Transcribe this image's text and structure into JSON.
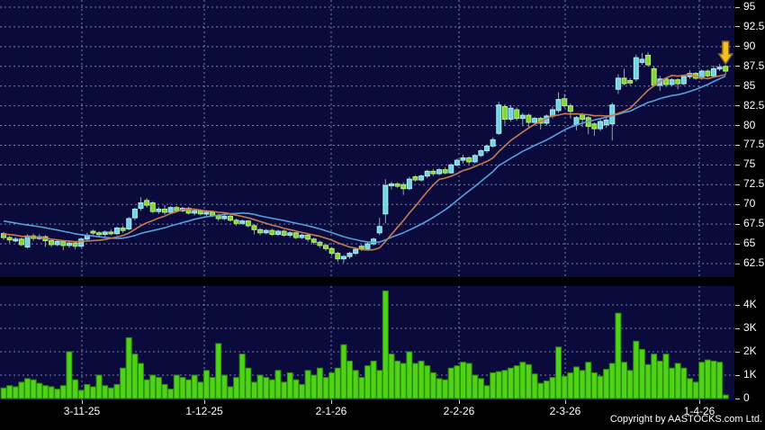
{
  "footer": {
    "copyright": "Copyright by AASTOCKS.com Ltd."
  },
  "colors": {
    "background": "#000000",
    "pane_background": "#0a0a3c",
    "grid": "#9096bc",
    "axis_text": "#ffffff",
    "up_body": "#6ed6e2",
    "up_border": "#b2f0f6",
    "down_body": "#7ed832",
    "down_border": "#bcf07c",
    "wick": "#98a2b6",
    "ma_fast": "#c87a50",
    "ma_slow": "#55a0dc",
    "volume_bar": "#4fd316",
    "volume_bar_border": "#2c8a0a",
    "arrow_fill": "#f2c028",
    "arrow_border": "#8a6a10"
  },
  "chart_data": {
    "type": "candlestick",
    "panes": [
      "price",
      "volume"
    ],
    "legend_position": "none",
    "grid": true,
    "price_axis": {
      "side": "right",
      "min": 62.5,
      "max": 95,
      "ticks": [
        {
          "value": 95,
          "label": "95"
        },
        {
          "value": 92.5,
          "label": "92.5"
        },
        {
          "value": 90,
          "label": "90"
        },
        {
          "value": 87.5,
          "label": "87.5"
        },
        {
          "value": 85,
          "label": "85"
        },
        {
          "value": 82.5,
          "label": "82.5"
        },
        {
          "value": 80,
          "label": "80"
        },
        {
          "value": 77.5,
          "label": "77.5"
        },
        {
          "value": 75,
          "label": "75"
        },
        {
          "value": 72.5,
          "label": "72.5"
        },
        {
          "value": 70,
          "label": "70"
        },
        {
          "value": 67.5,
          "label": "67.5"
        },
        {
          "value": 65,
          "label": "65"
        },
        {
          "value": 62.5,
          "label": "62.5"
        }
      ]
    },
    "volume_axis": {
      "side": "right",
      "min": 0,
      "max": 4600,
      "ticks": [
        {
          "value": 4,
          "label": "4K"
        },
        {
          "value": 3,
          "label": "3K"
        },
        {
          "value": 2,
          "label": "2K"
        },
        {
          "value": 1,
          "label": "1K"
        },
        {
          "value": 0,
          "label": "0"
        }
      ]
    },
    "x_axis": {
      "labels": [
        {
          "label": "3-11-25",
          "x": 91
        },
        {
          "label": "1-12-25",
          "x": 227
        },
        {
          "label": "2-1-26",
          "x": 368
        },
        {
          "label": "2-2-26",
          "x": 510
        },
        {
          "label": "2-3-26",
          "x": 628
        },
        {
          "label": "1-4-26",
          "x": 777
        }
      ]
    },
    "series": {
      "ohlcv_note": "each row = [open, high, low, close, volume_thousands]",
      "ohlcv": [
        [
          66.3,
          66.5,
          65.5,
          65.8,
          0.45
        ],
        [
          65.8,
          66.0,
          65.1,
          65.5,
          0.55
        ],
        [
          65.4,
          65.9,
          65.2,
          65.6,
          0.5
        ],
        [
          65.6,
          65.8,
          64.7,
          64.9,
          0.7
        ],
        [
          64.6,
          66.2,
          64.4,
          66.0,
          0.85
        ],
        [
          66.0,
          66.3,
          65.4,
          65.7,
          0.8
        ],
        [
          65.7,
          66.2,
          65.5,
          65.9,
          0.65
        ],
        [
          65.9,
          66.1,
          64.6,
          65.4,
          0.55
        ],
        [
          65.4,
          65.7,
          64.6,
          64.9,
          0.5
        ],
        [
          64.9,
          65.5,
          64.7,
          65.3,
          0.4
        ],
        [
          65.3,
          65.5,
          64.2,
          64.8,
          0.55
        ],
        [
          64.8,
          65.4,
          64.5,
          65.1,
          2.0
        ],
        [
          65.1,
          65.3,
          64.3,
          64.7,
          0.8
        ],
        [
          64.7,
          65.8,
          64.5,
          65.6,
          0.35
        ],
        [
          65.6,
          66.4,
          65.3,
          66.1,
          0.6
        ],
        [
          66.6,
          66.8,
          66.1,
          66.4,
          0.5
        ],
        [
          66.4,
          66.6,
          65.9,
          66.2,
          1.0
        ],
        [
          66.2,
          66.7,
          65.9,
          66.5,
          0.55
        ],
        [
          66.5,
          66.8,
          66.1,
          66.3,
          0.45
        ],
        [
          66.3,
          67.2,
          66.1,
          67.0,
          0.6
        ],
        [
          67.0,
          67.3,
          66.4,
          66.7,
          1.3
        ],
        [
          66.9,
          68.4,
          66.7,
          68.2,
          2.6
        ],
        [
          68.3,
          69.6,
          68.0,
          69.4,
          1.9
        ],
        [
          69.5,
          70.9,
          69.2,
          70.2,
          1.5
        ],
        [
          70.5,
          70.8,
          69.6,
          69.9,
          0.8
        ],
        [
          70.2,
          70.4,
          68.9,
          69.1,
          1.0
        ],
        [
          69.1,
          69.7,
          68.8,
          69.4,
          0.9
        ],
        [
          69.4,
          69.9,
          68.7,
          69.0,
          0.6
        ],
        [
          69.0,
          69.8,
          68.8,
          69.6,
          0.4
        ],
        [
          69.6,
          69.8,
          69.0,
          69.2,
          1.0
        ],
        [
          69.2,
          69.7,
          69.0,
          69.5,
          0.9
        ],
        [
          69.5,
          69.7,
          68.7,
          68.9,
          0.8
        ],
        [
          68.9,
          69.4,
          68.6,
          69.2,
          1.0
        ],
        [
          69.2,
          69.4,
          68.6,
          68.8,
          0.7
        ],
        [
          68.8,
          69.3,
          68.5,
          69.0,
          1.2
        ],
        [
          69.0,
          69.2,
          68.4,
          68.6,
          0.9
        ],
        [
          68.6,
          68.8,
          67.9,
          68.2,
          2.35
        ],
        [
          68.2,
          68.7,
          68.0,
          68.5,
          1.0
        ],
        [
          68.5,
          68.7,
          67.8,
          68.0,
          0.5
        ],
        [
          68.0,
          68.2,
          67.3,
          67.6,
          0.9
        ],
        [
          67.6,
          68.1,
          67.4,
          67.9,
          1.9
        ],
        [
          67.9,
          68.0,
          67.1,
          67.3,
          1.3
        ],
        [
          67.3,
          67.5,
          66.2,
          66.8,
          0.7
        ],
        [
          66.8,
          67.0,
          66.1,
          66.4,
          1.0
        ],
        [
          66.4,
          66.9,
          66.2,
          66.7,
          0.9
        ],
        [
          66.7,
          66.9,
          66.0,
          66.2,
          0.8
        ],
        [
          66.2,
          66.8,
          66.0,
          66.6,
          1.2
        ],
        [
          66.6,
          66.8,
          65.9,
          66.1,
          0.7
        ],
        [
          66.1,
          66.6,
          65.8,
          66.4,
          1.1
        ],
        [
          66.4,
          66.5,
          65.6,
          65.8,
          0.8
        ],
        [
          65.8,
          66.3,
          65.6,
          66.1,
          0.6
        ],
        [
          66.1,
          66.2,
          65.3,
          65.6,
          1.2
        ],
        [
          65.6,
          65.8,
          64.9,
          65.2,
          1.0
        ],
        [
          65.2,
          65.4,
          64.5,
          64.8,
          1.3
        ],
        [
          64.8,
          65.0,
          64.1,
          64.4,
          0.9
        ],
        [
          64.4,
          64.6,
          63.5,
          63.8,
          1.1
        ],
        [
          63.8,
          64.0,
          62.7,
          63.1,
          1.3
        ],
        [
          63.1,
          63.6,
          62.6,
          63.4,
          2.3
        ],
        [
          63.4,
          64.0,
          63.1,
          63.8,
          1.6
        ],
        [
          63.8,
          64.5,
          63.6,
          64.3,
          1.2
        ],
        [
          64.7,
          64.9,
          64.1,
          64.4,
          0.9
        ],
        [
          64.4,
          65.2,
          64.2,
          65.0,
          1.4
        ],
        [
          65.0,
          65.8,
          64.8,
          65.6,
          1.6
        ],
        [
          66.4,
          68.3,
          66.1,
          67.2,
          1.2
        ],
        [
          68.8,
          73.2,
          67.6,
          72.4,
          4.6
        ],
        [
          72.4,
          72.9,
          71.9,
          72.6,
          1.9
        ],
        [
          72.6,
          72.8,
          72.1,
          72.3,
          1.6
        ],
        [
          72.5,
          72.8,
          71.2,
          72.0,
          1.5
        ],
        [
          72.0,
          73.5,
          71.8,
          73.2,
          2.0
        ],
        [
          73.5,
          73.7,
          72.9,
          73.1,
          1.5
        ],
        [
          73.1,
          73.8,
          72.9,
          73.6,
          1.6
        ],
        [
          73.6,
          74.4,
          73.3,
          74.2,
          1.4
        ],
        [
          74.2,
          74.5,
          73.6,
          73.9,
          1.1
        ],
        [
          73.9,
          74.6,
          73.7,
          74.4,
          0.85
        ],
        [
          74.4,
          74.7,
          73.8,
          74.0,
          0.8
        ],
        [
          74.0,
          75.2,
          73.9,
          75.0,
          1.3
        ],
        [
          75.0,
          75.8,
          74.8,
          75.6,
          1.4
        ],
        [
          75.6,
          76.3,
          75.2,
          75.9,
          1.55
        ],
        [
          75.9,
          76.1,
          75.1,
          75.4,
          1.5
        ],
        [
          75.4,
          76.4,
          75.2,
          76.2,
          1.0
        ],
        [
          76.2,
          77.0,
          76.0,
          76.8,
          0.85
        ],
        [
          76.8,
          77.6,
          76.5,
          77.4,
          0.55
        ],
        [
          77.4,
          78.5,
          77.2,
          78.2,
          1.1
        ],
        [
          79.0,
          83.0,
          78.8,
          82.6,
          1.15
        ],
        [
          82.4,
          82.7,
          80.1,
          80.8,
          1.2
        ],
        [
          80.8,
          82.6,
          80.5,
          82.2,
          1.3
        ],
        [
          82.0,
          82.3,
          80.6,
          80.9,
          1.4
        ],
        [
          80.9,
          81.6,
          79.9,
          81.3,
          1.55
        ],
        [
          81.3,
          81.5,
          79.6,
          80.4,
          1.45
        ],
        [
          80.4,
          81.1,
          80.0,
          80.9,
          1.05
        ],
        [
          80.9,
          81.1,
          79.5,
          80.3,
          0.65
        ],
        [
          80.3,
          81.4,
          80.0,
          81.2,
          0.75
        ],
        [
          81.2,
          82.4,
          80.9,
          82.0,
          0.9
        ],
        [
          81.9,
          84.2,
          81.6,
          83.3,
          2.2
        ],
        [
          83.4,
          84.0,
          82.2,
          82.5,
          0.95
        ],
        [
          82.5,
          82.8,
          80.9,
          81.8,
          1.1
        ],
        [
          80.1,
          81.2,
          79.4,
          81.0,
          1.35
        ],
        [
          81.4,
          81.6,
          79.8,
          80.8,
          1.2
        ],
        [
          81.0,
          81.2,
          78.9,
          79.9,
          1.55
        ],
        [
          80.2,
          80.4,
          78.7,
          79.6,
          1.1
        ],
        [
          79.6,
          80.8,
          79.3,
          80.5,
          0.95
        ],
        [
          80.1,
          81.0,
          79.7,
          80.7,
          1.25
        ],
        [
          80.2,
          82.9,
          78.1,
          82.6,
          1.5
        ],
        [
          84.6,
          86.5,
          84.0,
          86.0,
          3.65
        ],
        [
          86.0,
          87.2,
          85.1,
          85.3,
          1.55
        ],
        [
          85.7,
          86.0,
          85.1,
          85.4,
          1.2
        ],
        [
          85.9,
          89.0,
          85.6,
          88.6,
          2.45
        ],
        [
          88.0,
          89.2,
          87.7,
          88.4,
          2.1
        ],
        [
          88.9,
          89.3,
          87.5,
          87.7,
          1.45
        ],
        [
          87.2,
          87.5,
          84.9,
          85.1,
          1.9
        ],
        [
          85.1,
          86.3,
          84.4,
          85.9,
          1.6
        ],
        [
          85.9,
          86.1,
          84.9,
          85.2,
          1.9
        ],
        [
          85.2,
          86.0,
          85.0,
          85.8,
          1.3
        ],
        [
          85.8,
          86.0,
          84.6,
          85.3,
          1.5
        ],
        [
          85.3,
          86.4,
          85.1,
          86.2,
          1.3
        ],
        [
          86.2,
          87.0,
          85.9,
          86.6,
          0.85
        ],
        [
          86.6,
          86.8,
          85.8,
          86.0,
          0.7
        ],
        [
          86.0,
          87.1,
          85.8,
          86.9,
          1.55
        ],
        [
          86.9,
          87.1,
          86.1,
          86.3,
          1.65
        ],
        [
          86.3,
          87.6,
          86.1,
          87.2,
          1.6
        ],
        [
          87.2,
          87.8,
          86.9,
          87.4,
          1.55
        ],
        [
          87.5,
          87.7,
          86.4,
          86.9,
          0.15
        ]
      ],
      "ma_fast": {
        "period": 10,
        "pad": 66.3
      },
      "ma_slow": {
        "period": 20,
        "pad": 68.0
      }
    },
    "annotations": [
      {
        "type": "down-arrow",
        "candle_index": 121
      }
    ]
  }
}
